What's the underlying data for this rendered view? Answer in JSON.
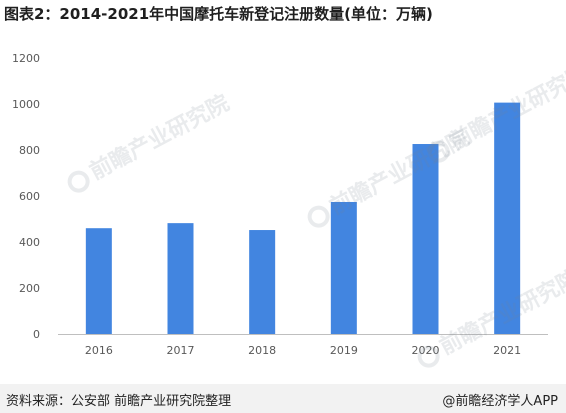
{
  "title": "图表2：2014-2021年中国摩托车新登记注册数量(单位：万辆)",
  "watermark": "前瞻产业研究院",
  "footer": {
    "source": "资料来源：公安部 前瞻产业研究院整理",
    "brand": "@前瞻经济学人APP"
  },
  "colors": {
    "bar": "#4285e0",
    "axis": "#bfbfbf",
    "tick_text": "#595959"
  },
  "chart_data": {
    "type": "bar",
    "categories": [
      "2016",
      "2017",
      "2018",
      "2019",
      "2020",
      "2021"
    ],
    "values": [
      460,
      482,
      452,
      574,
      826,
      1006
    ],
    "title": "图表2：2014-2021年中国摩托车新登记注册数量(单位：万辆)",
    "xlabel": "",
    "ylabel": "",
    "ylim": [
      0,
      1200
    ],
    "yticks": [
      0,
      200,
      400,
      600,
      800,
      1000,
      1200
    ],
    "grid": false,
    "legend": "none"
  }
}
